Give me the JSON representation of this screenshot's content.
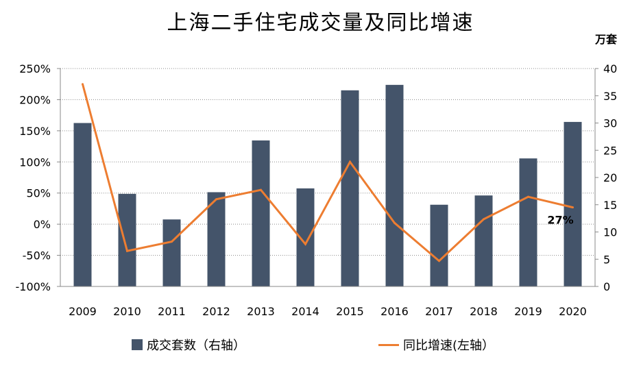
{
  "chart_data": {
    "type": "bar+line",
    "title": "上海二手住宅成交量及同比增速",
    "unit_right": "万套",
    "categories": [
      "2009",
      "2010",
      "2011",
      "2012",
      "2013",
      "2014",
      "2015",
      "2016",
      "2017",
      "2018",
      "2019",
      "2020"
    ],
    "series": [
      {
        "name": "成交套数（右轴）",
        "type": "bar",
        "axis": "right",
        "color": "#44546a",
        "values": [
          30,
          17,
          12.3,
          17.3,
          26.8,
          18,
          36,
          37,
          15,
          16.7,
          23.5,
          30.2
        ]
      },
      {
        "name": "同比增速(左轴）",
        "type": "line",
        "axis": "left",
        "color": "#ed7d31",
        "values": [
          2.25,
          -0.43,
          -0.28,
          0.4,
          0.55,
          -0.32,
          1.0,
          0.02,
          -0.59,
          0.08,
          0.44,
          0.27
        ]
      }
    ],
    "y_left": {
      "min": -1.0,
      "max": 2.5,
      "step": 0.5,
      "ticks": [
        "250%",
        "200%",
        "150%",
        "100%",
        "50%",
        "0%",
        "-50%",
        "-100%"
      ]
    },
    "y_right": {
      "min": 0,
      "max": 40,
      "step": 5,
      "ticks": [
        "40",
        "35",
        "30",
        "25",
        "20",
        "15",
        "10",
        "5",
        "0"
      ]
    },
    "annotation": {
      "text": "27%",
      "category": "2020"
    },
    "grid": "horizontal-dotted",
    "legend_position": "bottom"
  }
}
